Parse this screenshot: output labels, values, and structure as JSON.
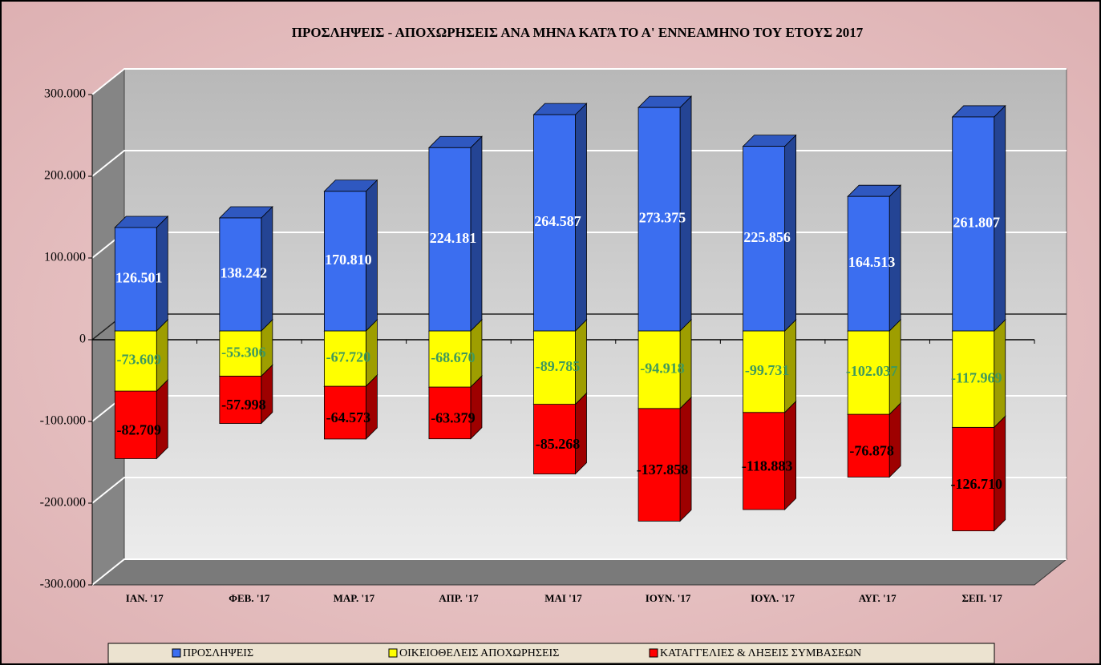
{
  "chart_data": {
    "type": "bar3d_stacked",
    "title": "ΠΡΟΣΛΗΨΕΙΣ - ΑΠΟΧΩΡΗΣΕΙΣ ΑΝΑ ΜΗΝΑ ΚΑΤΆ ΤΟ Α' ΕΝΝΕΑΜΗΝΟ ΤΟΥ   ΕΤΟΥΣ 2017",
    "categories": [
      "ΙΑΝ. '17",
      "ΦΕΒ. '17",
      "ΜΑΡ. '17",
      "ΑΠΡ. '17",
      "ΜΑΙ  '17",
      "ΙΟΥΝ. '17",
      "ΙΟΥΛ. '17",
      "ΑΥΓ. '17",
      "ΣΕΠ. '17"
    ],
    "series": [
      {
        "name": "ΠΡΟΣΛΗΨΕΙΣ",
        "color": "#3b6ef0",
        "label_color": "#ffffff",
        "values": [
          126501,
          138242,
          170810,
          224181,
          264587,
          273375,
          225856,
          164513,
          261807
        ],
        "value_labels": [
          "126.501",
          "138.242",
          "170.810",
          "224.181",
          "264.587",
          "273.375",
          "225.856",
          "164.513",
          "261.807"
        ]
      },
      {
        "name": "ΟΙΚΕΙΟΘΕΛΕΙΣ ΑΠΟΧΩΡΗΣΕΙΣ",
        "color": "#ffff00",
        "label_color": "#3f9a5c",
        "values": [
          -73609,
          -55306,
          -67720,
          -68670,
          -89785,
          -94918,
          -99731,
          -102037,
          -117969
        ],
        "value_labels": [
          "-73.609",
          "-55.306",
          "-67.720",
          "-68.670",
          "-89.785",
          "-94.918",
          "-99.731",
          "-102.037",
          "-117.969"
        ]
      },
      {
        "name": "ΚΑΤΑΓΓΕΛΙΕΣ & ΛΗΞΕΙΣ ΣΥΜΒΑΣΕΩΝ",
        "color": "#ff0000",
        "label_color": "#000000",
        "values": [
          -82709,
          -57998,
          -64573,
          -63379,
          -85268,
          -137858,
          -118883,
          -76878,
          -126710
        ],
        "value_labels": [
          "-82.709",
          "-57.998",
          "-64.573",
          "-63.379",
          "-85.268",
          "-137.858",
          "-118.883",
          "-76.878",
          "-126.710"
        ]
      }
    ],
    "ylim": [
      -300000,
      300000
    ],
    "yticks": [
      {
        "value": -300000,
        "label": "-300.000"
      },
      {
        "value": -200000,
        "label": "-200.000"
      },
      {
        "value": -100000,
        "label": "-100.000"
      },
      0,
      {
        "value": 100000,
        "label": "100.000"
      },
      {
        "value": 200000,
        "label": "200.000"
      },
      {
        "value": 300000,
        "label": "300.000"
      }
    ],
    "grid": true,
    "legend": "bottom"
  }
}
